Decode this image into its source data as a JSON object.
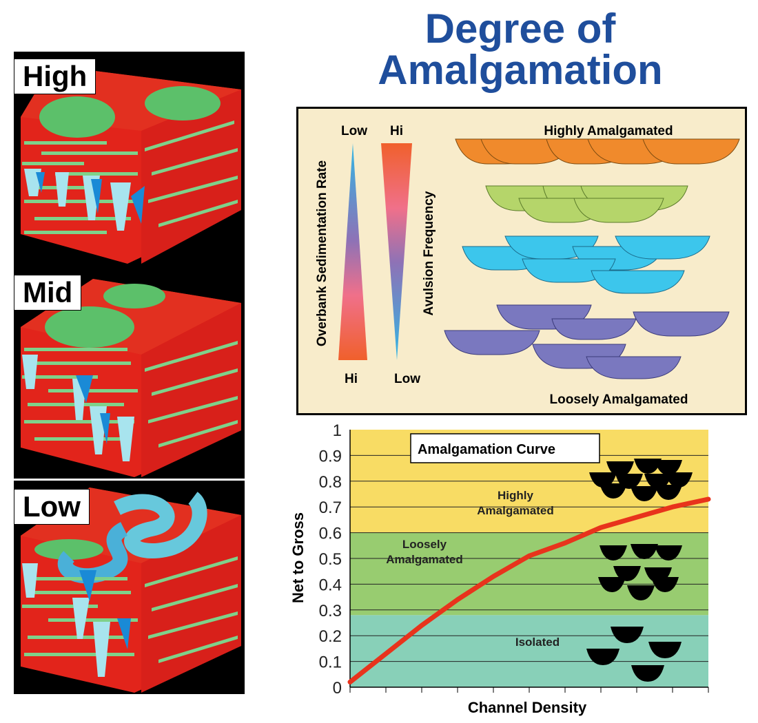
{
  "title": {
    "line1": "Degree of",
    "line2": "Amalgamation"
  },
  "block_models": [
    {
      "label": "High"
    },
    {
      "label": "Mid"
    },
    {
      "label": "Low"
    }
  ],
  "amalgamation_diagram": {
    "overbank": {
      "label": "Overbank Sedimentation Rate",
      "top": "Low",
      "bottom": "Hi"
    },
    "avulsion": {
      "label": "Avulsion Frequency",
      "top": "Hi",
      "bottom": "Low"
    },
    "top_label": "Highly Amalgamated",
    "bottom_label": "Loosely Amalgamated",
    "colors": {
      "row1": "#f08a2c",
      "row2": "#b5d56a",
      "row3": "#3cc6ec",
      "row4": "#7a78bf"
    }
  },
  "chart_data": {
    "type": "line",
    "title": "Amalgamation Curve",
    "xlabel": "Channel Density",
    "ylabel": "Net to Gross",
    "ylim": [
      0,
      1
    ],
    "yticks": [
      "0",
      "0.1",
      "0.2",
      "0.3",
      "0.4",
      "0.5",
      "0.6",
      "0.7",
      "0.8",
      "0.9",
      "1"
    ],
    "grid": true,
    "bands": [
      {
        "label": "Isolated",
        "from": 0,
        "to": 0.28,
        "color": "#88d0b8"
      },
      {
        "label": "Loosely Amalgamated",
        "from": 0.28,
        "to": 0.6,
        "color": "#98cc70"
      },
      {
        "label": "Highly Amalgamated",
        "from": 0.6,
        "to": 1,
        "color": "#f8dc64"
      }
    ],
    "series": [
      {
        "x": [
          0,
          0.1,
          0.2,
          0.3,
          0.4,
          0.5,
          0.6,
          0.7,
          0.8,
          0.9,
          1.0
        ],
        "values": [
          0.02,
          0.13,
          0.24,
          0.34,
          0.43,
          0.51,
          0.56,
          0.62,
          0.66,
          0.7,
          0.73
        ],
        "color": "#e8331c"
      }
    ]
  }
}
